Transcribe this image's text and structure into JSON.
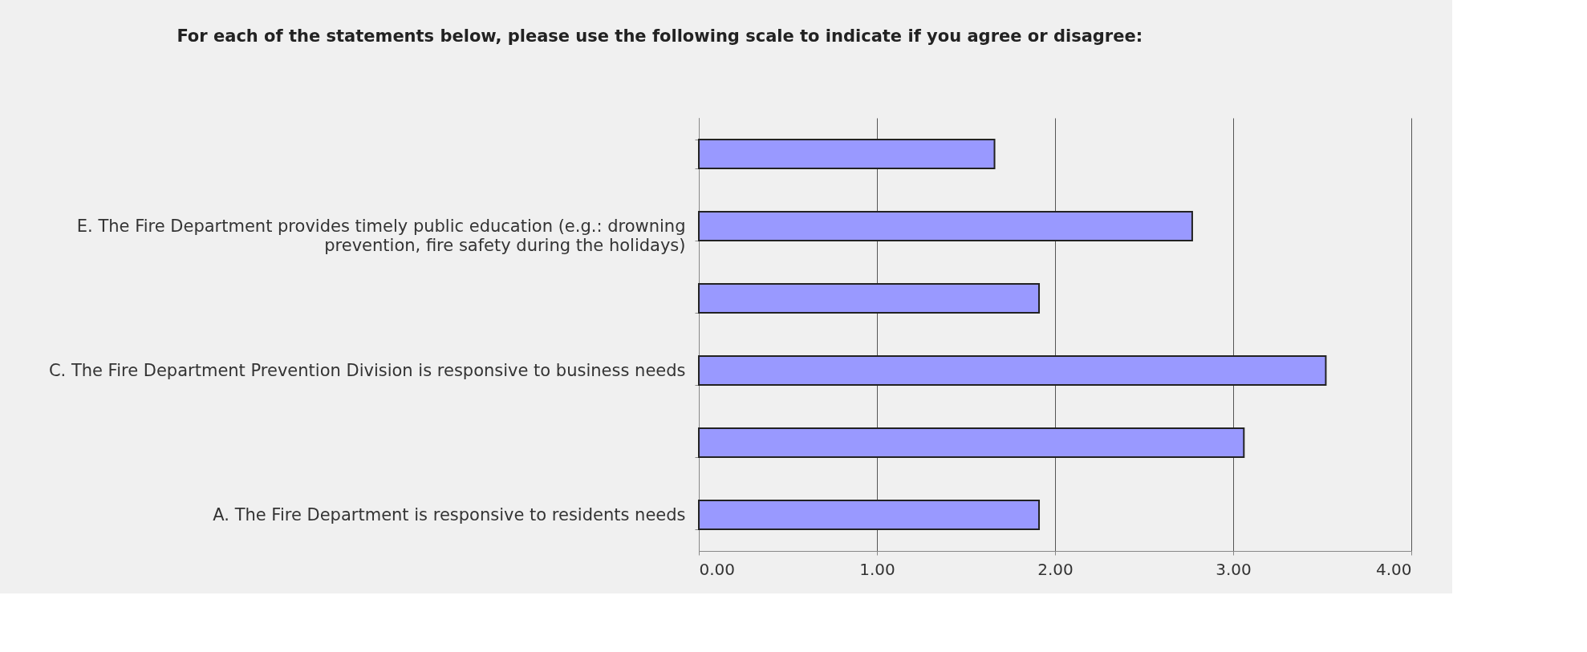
{
  "chart_data": {
    "type": "bar",
    "orientation": "horizontal",
    "title": "For each of the statements below, please use the following scale to indicate if you agree or disagree:",
    "categories": [
      null,
      "E. The Fire Department provides timely public education (e.g.: drowning prevention, fire safety during the holidays)",
      null,
      "C. The Fire Department Prevention Division is responsive to business needs",
      null,
      "A. The Fire Department is responsive to residents needs"
    ],
    "values": [
      1.66,
      2.77,
      1.91,
      3.52,
      3.06,
      1.91
    ],
    "color": "#9999ff",
    "xlim": [
      0,
      4
    ],
    "xticks": [
      {
        "value": 0,
        "label": "0.00"
      },
      {
        "value": 1,
        "label": "1.00"
      },
      {
        "value": 2,
        "label": "2.00"
      },
      {
        "value": 3,
        "label": "3.00"
      },
      {
        "value": 4,
        "label": "4.00"
      }
    ],
    "grid": "x"
  }
}
